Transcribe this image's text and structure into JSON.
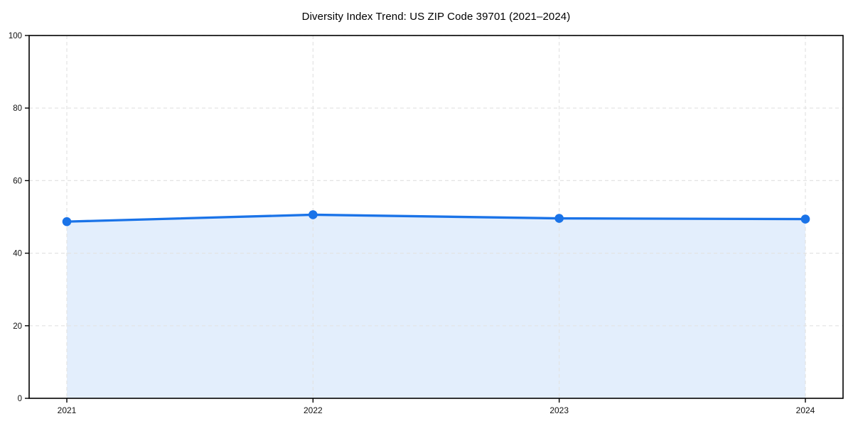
{
  "chart_data": {
    "type": "line",
    "title": "Diversity Index Trend: US ZIP Code 39701 (2021–2024)",
    "categories": [
      "2021",
      "2022",
      "2023",
      "2024"
    ],
    "series": [
      {
        "name": "Diversity Index",
        "values": [
          48.7,
          50.6,
          49.6,
          49.4
        ]
      }
    ],
    "xlabel": "",
    "ylabel": "",
    "ylim": [
      0,
      100
    ],
    "yticks": [
      0,
      20,
      40,
      60,
      80,
      100
    ],
    "grid": {
      "horizontal": true,
      "vertical": true,
      "style": "dashed",
      "above_fill": true
    },
    "legend_position": "none",
    "area_fill": true,
    "marker": "circle",
    "colors": {
      "line": "#1a73e8",
      "marker": "#1a73e8",
      "area": "rgba(26,115,232,0.12)",
      "grid": "#e3e3e3",
      "frame": "#000000",
      "text": "#111111",
      "background": "#ffffff"
    }
  }
}
